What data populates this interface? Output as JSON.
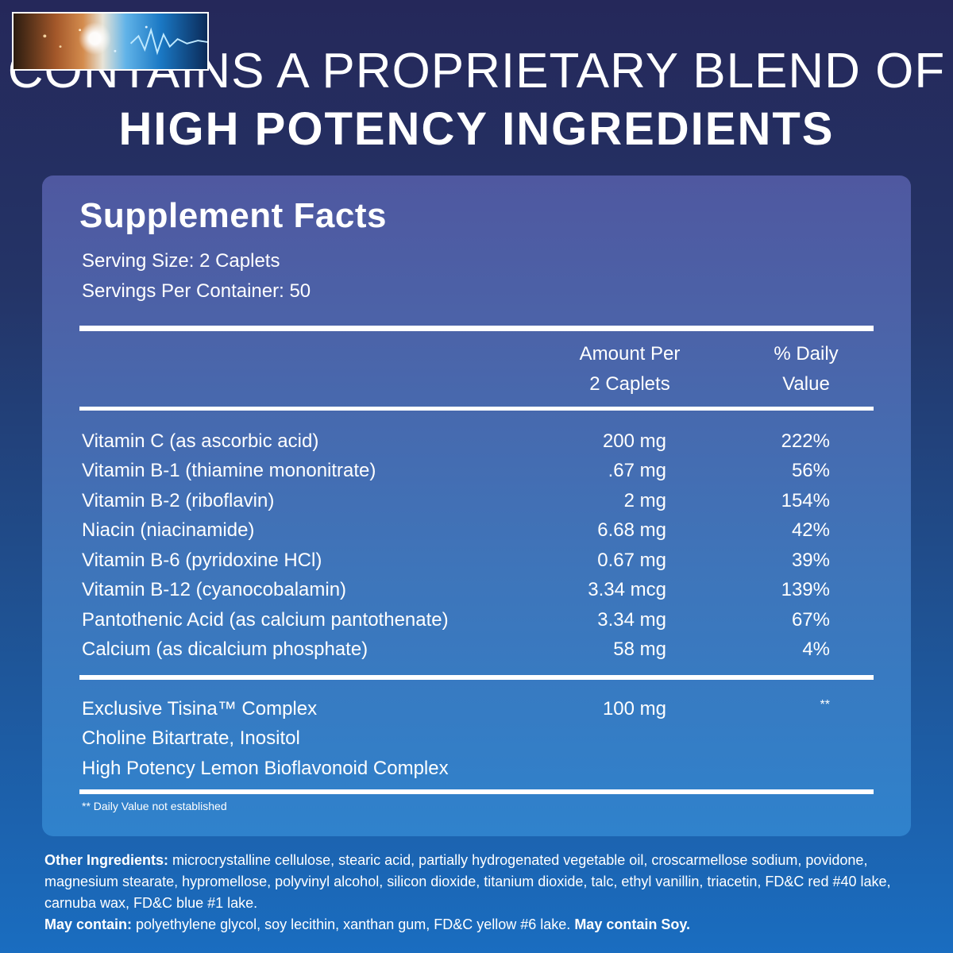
{
  "headline": {
    "line1": "CONTAINS A PROPRIETARY BLEND OF",
    "line2": "HIGH POTENCY INGREDIENTS"
  },
  "facts": {
    "title": "Supplement Facts",
    "serving_size": "Serving Size: 2 Caplets",
    "servings_per_container": "Servings Per Container: 50",
    "col_amount_line1": "Amount Per",
    "col_amount_line2": "2 Caplets",
    "col_dv_line1": "% Daily",
    "col_dv_line2": "Value",
    "rows": [
      {
        "name": "Vitamin C (as ascorbic acid)",
        "amount": "200 mg",
        "dv": "222%"
      },
      {
        "name": "Vitamin B-1 (thiamine mononitrate)",
        "amount": ".67 mg",
        "dv": "56%"
      },
      {
        "name": "Vitamin B-2 (riboflavin)",
        "amount": "2 mg",
        "dv": "154%"
      },
      {
        "name": "Niacin (niacinamide)",
        "amount": "6.68 mg",
        "dv": "42%"
      },
      {
        "name": "Vitamin B-6 (pyridoxine HCl)",
        "amount": "0.67 mg",
        "dv": "39%"
      },
      {
        "name": "Vitamin B-12 (cyanocobalamin)",
        "amount": "3.34 mcg",
        "dv": "139%"
      },
      {
        "name": "Pantothenic Acid (as calcium pantothenate)",
        "amount": "3.34 mg",
        "dv": "67%"
      },
      {
        "name": "Calcium (as dicalcium phosphate)",
        "amount": "58 mg",
        "dv": "4%"
      }
    ],
    "complex": {
      "name": "Exclusive Tisina™ Complex",
      "amount": "100 mg",
      "dv": "**",
      "line2": "Choline Bitartrate, Inositol",
      "line3": "High Potency Lemon Bioflavonoid Complex"
    },
    "footnote": "** Daily Value not established"
  },
  "other_ingredients": {
    "label": "Other Ingredients:",
    "text": " microcrystalline cellulose, stearic acid, partially hydrogenated vegetable oil, croscarmellose sodium, povidone, magnesium stearate, hypromellose, polyvinyl alcohol, silicon dioxide, titanium dioxide, talc, ethyl vanillin, triacetin, FD&C red #40 lake, carnuba wax, FD&C blue #1 lake.",
    "may_label": "May contain:",
    "may_text": " polyethylene glycol, soy lecithin, xanthan gum, FD&C yellow #6 lake.",
    "soy": "May contain Soy."
  },
  "colors": {
    "background_top": "#25285a",
    "background_bottom": "#1a6dc0",
    "panel_top": "#4f58a0",
    "panel_bottom": "#2f82cc",
    "text": "#ffffff"
  }
}
